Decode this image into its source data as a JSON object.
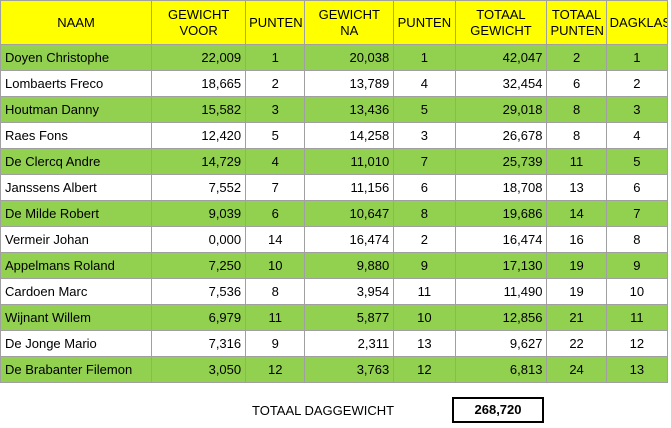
{
  "headers": {
    "naam": "NAAM",
    "gewicht_voor": "GEWICHT VOOR",
    "punten1": "PUNTEN",
    "gewicht_na": "GEWICHT NA",
    "punten2": "PUNTEN",
    "totaal_gewicht": "TOTAAL GEWICHT",
    "totaal_punten": "TOTAAL PUNTEN",
    "dagklas": "DAGKLAS"
  },
  "rows": [
    {
      "naam": "Doyen Christophe",
      "gewicht_voor": "22,009",
      "punten1": "1",
      "gewicht_na": "20,038",
      "punten2": "1",
      "totaal_gewicht": "42,047",
      "totaal_punten": "2",
      "dagklas": "1"
    },
    {
      "naam": "Lombaerts Freco",
      "gewicht_voor": "18,665",
      "punten1": "2",
      "gewicht_na": "13,789",
      "punten2": "4",
      "totaal_gewicht": "32,454",
      "totaal_punten": "6",
      "dagklas": "2"
    },
    {
      "naam": "Houtman Danny",
      "gewicht_voor": "15,582",
      "punten1": "3",
      "gewicht_na": "13,436",
      "punten2": "5",
      "totaal_gewicht": "29,018",
      "totaal_punten": "8",
      "dagklas": "3"
    },
    {
      "naam": "Raes Fons",
      "gewicht_voor": "12,420",
      "punten1": "5",
      "gewicht_na": "14,258",
      "punten2": "3",
      "totaal_gewicht": "26,678",
      "totaal_punten": "8",
      "dagklas": "4"
    },
    {
      "naam": "De Clercq Andre",
      "gewicht_voor": "14,729",
      "punten1": "4",
      "gewicht_na": "11,010",
      "punten2": "7",
      "totaal_gewicht": "25,739",
      "totaal_punten": "11",
      "dagklas": "5"
    },
    {
      "naam": "Janssens Albert",
      "gewicht_voor": "7,552",
      "punten1": "7",
      "gewicht_na": "11,156",
      "punten2": "6",
      "totaal_gewicht": "18,708",
      "totaal_punten": "13",
      "dagklas": "6"
    },
    {
      "naam": "De Milde Robert",
      "gewicht_voor": "9,039",
      "punten1": "6",
      "gewicht_na": "10,647",
      "punten2": "8",
      "totaal_gewicht": "19,686",
      "totaal_punten": "14",
      "dagklas": "7"
    },
    {
      "naam": "Vermeir Johan",
      "gewicht_voor": "0,000",
      "punten1": "14",
      "gewicht_na": "16,474",
      "punten2": "2",
      "totaal_gewicht": "16,474",
      "totaal_punten": "16",
      "dagklas": "8"
    },
    {
      "naam": "Appelmans Roland",
      "gewicht_voor": "7,250",
      "punten1": "10",
      "gewicht_na": "9,880",
      "punten2": "9",
      "totaal_gewicht": "17,130",
      "totaal_punten": "19",
      "dagklas": "9"
    },
    {
      "naam": "Cardoen Marc",
      "gewicht_voor": "7,536",
      "punten1": "8",
      "gewicht_na": "3,954",
      "punten2": "11",
      "totaal_gewicht": "11,490",
      "totaal_punten": "19",
      "dagklas": "10"
    },
    {
      "naam": "Wijnant Willem",
      "gewicht_voor": "6,979",
      "punten1": "11",
      "gewicht_na": "5,877",
      "punten2": "10",
      "totaal_gewicht": "12,856",
      "totaal_punten": "21",
      "dagklas": "11"
    },
    {
      "naam": "De Jonge Mario",
      "gewicht_voor": "7,316",
      "punten1": "9",
      "gewicht_na": "2,311",
      "punten2": "13",
      "totaal_gewicht": "9,627",
      "totaal_punten": "22",
      "dagklas": "12"
    },
    {
      "naam": "De Brabanter Filemon",
      "gewicht_voor": "3,050",
      "punten1": "12",
      "gewicht_na": "3,763",
      "punten2": "12",
      "totaal_gewicht": "6,813",
      "totaal_punten": "24",
      "dagklas": "13"
    }
  ],
  "footer": {
    "label": "TOTAAL DAGGEWICHT",
    "total": "268,720"
  },
  "colors": {
    "header_bg": "#ffff00",
    "row_green": "#92d050",
    "row_white": "#ffffff"
  }
}
